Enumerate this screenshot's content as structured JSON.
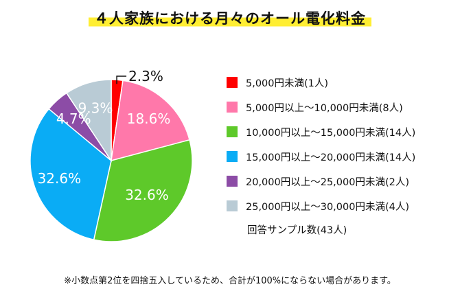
{
  "title": "４人家族における月々のオール電化料金",
  "sample_text": "回答サンプル数(43人)",
  "footnote": "※小数点第2位を四捨五入しているため、合計が100%にならない場合があります。",
  "chart_data": {
    "type": "pie",
    "categories": [
      "5,000円未満(1人)",
      "5,000円以上～10,000円未満(8人)",
      "10,000円以上～15,000円未満(14人)",
      "15,000円以上～20,000円未満(14人)",
      "20,000円以上～25,000円未満(2人)",
      "25,000円以上～30,000円未満(4人)"
    ],
    "values": [
      2.3,
      18.6,
      32.6,
      32.6,
      4.7,
      9.3
    ],
    "counts": [
      1,
      8,
      14,
      14,
      2,
      4
    ],
    "value_labels": [
      "2.3%",
      "18.6%",
      "32.6%",
      "32.6%",
      "4.7%",
      "9.3%"
    ],
    "colors": [
      "#ff0000",
      "#ff78aa",
      "#5ec92a",
      "#0aacf5",
      "#8c4ca6",
      "#b9cbd5"
    ],
    "label_colors": [
      "#111111",
      "#ffffff",
      "#ffffff",
      "#ffffff",
      "#ffffff",
      "#ffffff"
    ],
    "legend_position": "right"
  }
}
